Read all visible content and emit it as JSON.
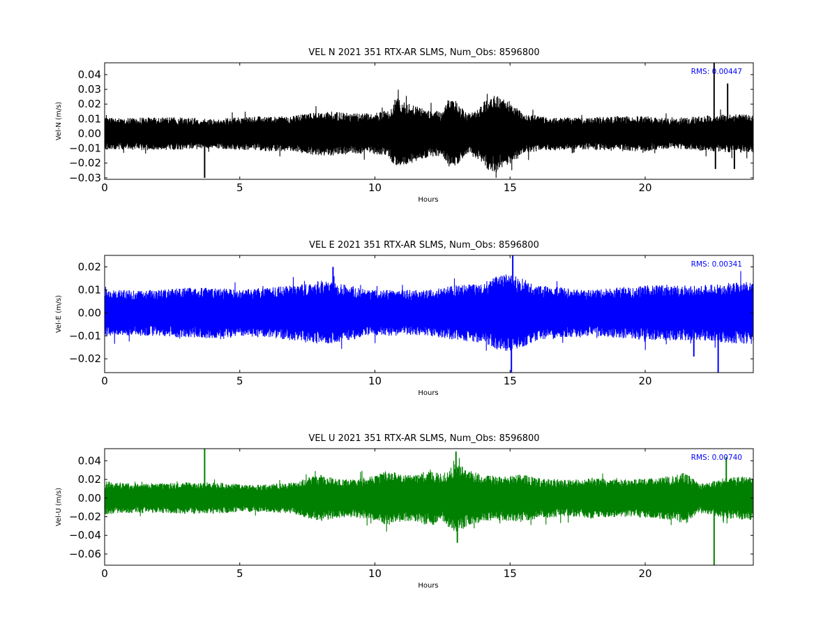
{
  "chart_data": [
    {
      "type": "line",
      "title": "VEL N 2021 351 RTX-AR  SLMS, Num_Obs: 8596800",
      "xlabel": "Hours",
      "ylabel": "Vel-N (m/s)",
      "xlim": [
        0,
        24
      ],
      "ylim": [
        -0.031,
        0.048
      ],
      "xticks": [
        0,
        5,
        10,
        15,
        20
      ],
      "xtick_labels": [
        "0",
        "5",
        "10",
        "15",
        "20"
      ],
      "yticks": [
        -0.03,
        -0.02,
        -0.01,
        0.0,
        0.01,
        0.02,
        0.03,
        0.04
      ],
      "ytick_labels": [
        "−0.03",
        "−0.02",
        "−0.01",
        "0.00",
        "0.01",
        "0.02",
        "0.03",
        "0.04"
      ],
      "annotation": "RMS:  0.00447",
      "annotation_color": "#0000ff",
      "series_color": "#000000",
      "grid": false,
      "envelope": {
        "hours": [
          0,
          1,
          2,
          3,
          4,
          5,
          6,
          7,
          7.5,
          8,
          8.5,
          9,
          10,
          10.5,
          10.8,
          11.5,
          12,
          12.5,
          12.7,
          13,
          13.4,
          13.8,
          14.2,
          14.5,
          15,
          15.5,
          16,
          17,
          18,
          19,
          20,
          21,
          22,
          23,
          24
        ],
        "amplitude": [
          0.011,
          0.011,
          0.011,
          0.011,
          0.01,
          0.011,
          0.012,
          0.012,
          0.014,
          0.015,
          0.015,
          0.014,
          0.014,
          0.016,
          0.024,
          0.019,
          0.016,
          0.015,
          0.023,
          0.022,
          0.014,
          0.017,
          0.025,
          0.026,
          0.021,
          0.014,
          0.012,
          0.011,
          0.011,
          0.012,
          0.012,
          0.01,
          0.012,
          0.013,
          0.013
        ]
      },
      "spikes": [
        {
          "hour": 3.7,
          "value": -0.03
        },
        {
          "hour": 22.55,
          "value": 0.048
        },
        {
          "hour": 22.6,
          "value": -0.024
        },
        {
          "hour": 23.05,
          "value": 0.034
        },
        {
          "hour": 23.3,
          "value": -0.024
        }
      ]
    },
    {
      "type": "line",
      "title": "VEL E 2021 351 RTX-AR  SLMS, Num_Obs: 8596800",
      "xlabel": "Hours",
      "ylabel": "Vel-E (m/s)",
      "xlim": [
        0,
        24
      ],
      "ylim": [
        -0.026,
        0.025
      ],
      "xticks": [
        0,
        5,
        10,
        15,
        20
      ],
      "xtick_labels": [
        "0",
        "5",
        "10",
        "15",
        "20"
      ],
      "yticks": [
        -0.02,
        -0.01,
        0.0,
        0.01,
        0.02
      ],
      "ytick_labels": [
        "−0.02",
        "−0.01",
        "0.00",
        "0.01",
        "0.02"
      ],
      "annotation": "RMS:  0.00341",
      "annotation_color": "#0000ff",
      "series_color": "#0000ff",
      "grid": false,
      "envelope": {
        "hours": [
          0,
          1,
          2,
          3,
          4,
          5,
          6,
          7,
          7.5,
          8,
          8.5,
          9,
          10,
          11,
          12,
          13,
          14,
          14.5,
          15,
          15.5,
          16,
          17,
          18,
          19,
          20,
          21,
          22,
          23,
          24
        ],
        "amplitude": [
          0.01,
          0.01,
          0.01,
          0.011,
          0.011,
          0.01,
          0.011,
          0.012,
          0.013,
          0.014,
          0.013,
          0.012,
          0.01,
          0.01,
          0.01,
          0.012,
          0.013,
          0.016,
          0.017,
          0.015,
          0.012,
          0.011,
          0.01,
          0.011,
          0.012,
          0.012,
          0.012,
          0.013,
          0.014
        ]
      },
      "spikes": [
        {
          "hour": 8.45,
          "value": 0.02
        },
        {
          "hour": 15.1,
          "value": 0.025
        },
        {
          "hour": 15.05,
          "value": -0.026
        },
        {
          "hour": 22.7,
          "value": -0.026
        },
        {
          "hour": 21.8,
          "value": -0.019
        }
      ]
    },
    {
      "type": "line",
      "title": "VEL U 2021 351 RTX-AR  SLMS, Num_Obs: 8596800",
      "xlabel": "Hours",
      "ylabel": "Vel-U (m/s)",
      "xlim": [
        0,
        24
      ],
      "ylim": [
        -0.072,
        0.053
      ],
      "xticks": [
        0,
        5,
        10,
        15,
        20
      ],
      "xtick_labels": [
        "0",
        "5",
        "10",
        "15",
        "20"
      ],
      "yticks": [
        -0.06,
        -0.04,
        -0.02,
        0.0,
        0.02,
        0.04
      ],
      "ytick_labels": [
        "−0.06",
        "−0.04",
        "−0.02",
        "0.00",
        "0.02",
        "0.04"
      ],
      "annotation": "RMS:  0.00740",
      "annotation_color": "#0000ff",
      "series_color": "#008000",
      "grid": false,
      "envelope": {
        "hours": [
          0,
          1,
          2,
          3,
          4,
          5,
          6,
          7,
          7.5,
          8,
          8.5,
          9,
          10,
          10.5,
          11,
          11.5,
          12,
          12.5,
          13,
          13.5,
          14,
          14.5,
          15,
          15.5,
          16,
          17,
          18,
          19,
          20,
          21,
          21.5,
          22,
          23,
          24
        ],
        "amplitude": [
          0.018,
          0.016,
          0.016,
          0.017,
          0.017,
          0.015,
          0.015,
          0.017,
          0.022,
          0.025,
          0.022,
          0.02,
          0.024,
          0.03,
          0.025,
          0.025,
          0.03,
          0.026,
          0.038,
          0.03,
          0.025,
          0.024,
          0.025,
          0.026,
          0.022,
          0.02,
          0.022,
          0.02,
          0.021,
          0.024,
          0.028,
          0.015,
          0.022,
          0.024
        ]
      },
      "spikes": [
        {
          "hour": 3.7,
          "value": 0.053
        },
        {
          "hour": 22.55,
          "value": -0.072
        },
        {
          "hour": 23.0,
          "value": 0.044
        },
        {
          "hour": 13.05,
          "value": -0.048
        },
        {
          "hour": 13.0,
          "value": 0.05
        }
      ]
    }
  ]
}
